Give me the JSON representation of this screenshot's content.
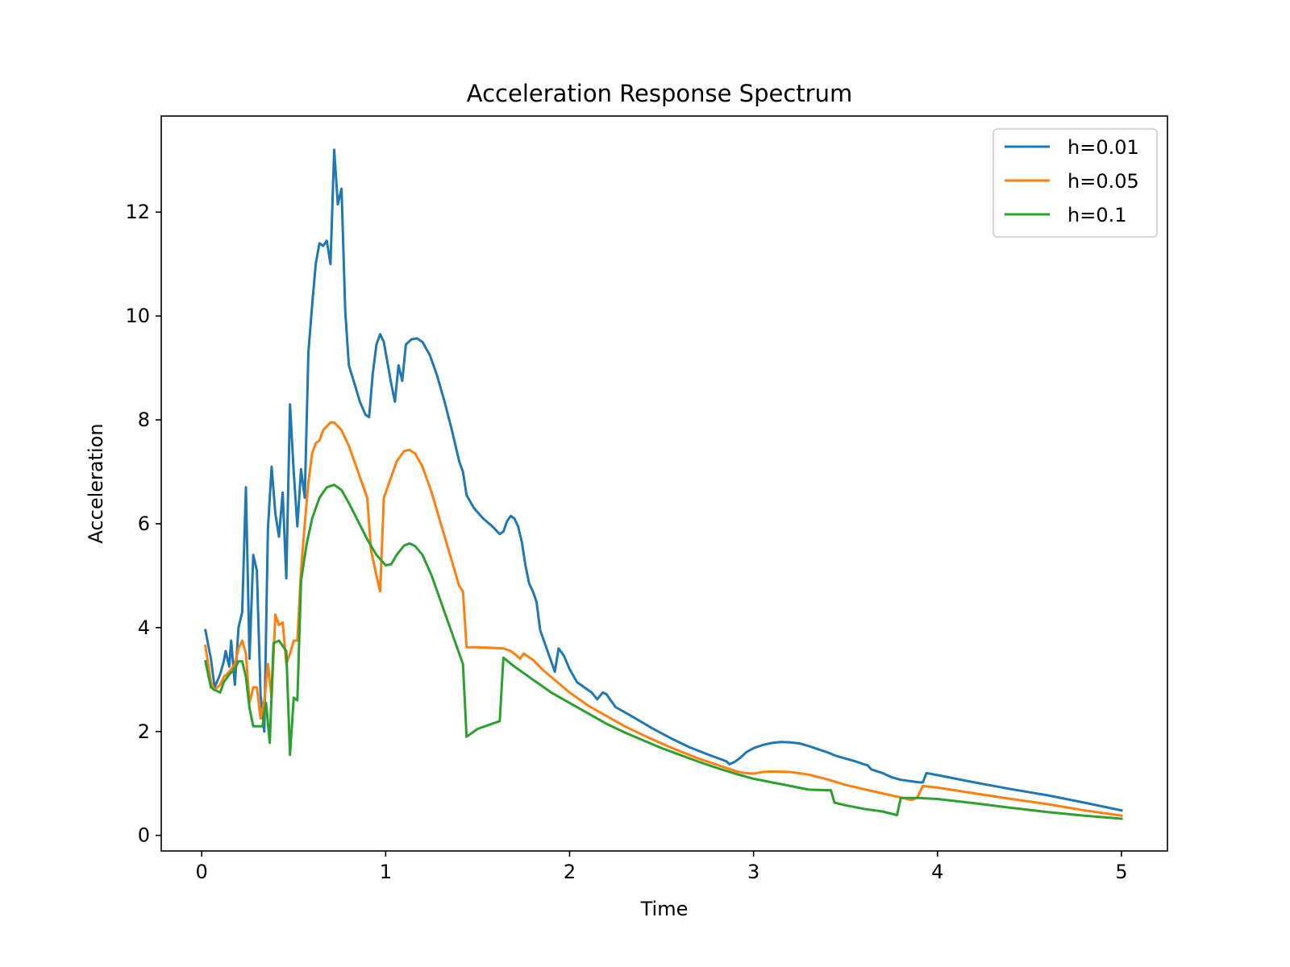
{
  "chart_data": {
    "type": "line",
    "title": "Acceleration Response Spectrum",
    "xlabel": "Time",
    "ylabel": "Acceleration",
    "xlim": [
      -0.22,
      5.25
    ],
    "ylim": [
      -0.3,
      13.85
    ],
    "xticks": [
      0,
      1,
      2,
      3,
      4,
      5
    ],
    "yticks": [
      0,
      2,
      4,
      6,
      8,
      10,
      12
    ],
    "grid": false,
    "legend_position": "upper right",
    "series": [
      {
        "name": "h=0.01",
        "color": "#1f77b4",
        "points": [
          [
            0.02,
            3.95
          ],
          [
            0.05,
            3.4
          ],
          [
            0.07,
            2.85
          ],
          [
            0.1,
            3.1
          ],
          [
            0.12,
            3.35
          ],
          [
            0.13,
            3.55
          ],
          [
            0.15,
            3.25
          ],
          [
            0.16,
            3.75
          ],
          [
            0.18,
            2.9
          ],
          [
            0.2,
            4.0
          ],
          [
            0.22,
            4.3
          ],
          [
            0.24,
            6.7
          ],
          [
            0.26,
            3.4
          ],
          [
            0.28,
            5.4
          ],
          [
            0.3,
            5.1
          ],
          [
            0.32,
            2.7
          ],
          [
            0.34,
            2.0
          ],
          [
            0.36,
            5.9
          ],
          [
            0.38,
            7.1
          ],
          [
            0.4,
            6.2
          ],
          [
            0.42,
            5.75
          ],
          [
            0.44,
            6.6
          ],
          [
            0.46,
            4.95
          ],
          [
            0.48,
            8.3
          ],
          [
            0.5,
            7.0
          ],
          [
            0.52,
            5.95
          ],
          [
            0.54,
            7.05
          ],
          [
            0.56,
            6.5
          ],
          [
            0.58,
            9.3
          ],
          [
            0.6,
            10.2
          ],
          [
            0.62,
            11.0
          ],
          [
            0.64,
            11.4
          ],
          [
            0.66,
            11.35
          ],
          [
            0.68,
            11.45
          ],
          [
            0.7,
            11.0
          ],
          [
            0.72,
            13.2
          ],
          [
            0.74,
            12.15
          ],
          [
            0.76,
            12.45
          ],
          [
            0.78,
            10.1
          ],
          [
            0.8,
            9.05
          ],
          [
            0.83,
            8.7
          ],
          [
            0.86,
            8.35
          ],
          [
            0.89,
            8.1
          ],
          [
            0.91,
            8.05
          ],
          [
            0.93,
            8.9
          ],
          [
            0.95,
            9.45
          ],
          [
            0.97,
            9.65
          ],
          [
            0.99,
            9.5
          ],
          [
            1.01,
            9.1
          ],
          [
            1.03,
            8.7
          ],
          [
            1.05,
            8.35
          ],
          [
            1.07,
            9.05
          ],
          [
            1.09,
            8.75
          ],
          [
            1.11,
            9.45
          ],
          [
            1.14,
            9.55
          ],
          [
            1.17,
            9.57
          ],
          [
            1.2,
            9.5
          ],
          [
            1.24,
            9.25
          ],
          [
            1.28,
            8.85
          ],
          [
            1.32,
            8.35
          ],
          [
            1.36,
            7.8
          ],
          [
            1.4,
            7.2
          ],
          [
            1.42,
            7.0
          ],
          [
            1.44,
            6.55
          ],
          [
            1.48,
            6.3
          ],
          [
            1.53,
            6.1
          ],
          [
            1.58,
            5.95
          ],
          [
            1.62,
            5.8
          ],
          [
            1.64,
            5.85
          ],
          [
            1.66,
            6.05
          ],
          [
            1.68,
            6.15
          ],
          [
            1.7,
            6.1
          ],
          [
            1.72,
            5.95
          ],
          [
            1.74,
            5.65
          ],
          [
            1.76,
            5.2
          ],
          [
            1.78,
            4.85
          ],
          [
            1.8,
            4.7
          ],
          [
            1.82,
            4.5
          ],
          [
            1.84,
            3.95
          ],
          [
            1.88,
            3.55
          ],
          [
            1.92,
            3.15
          ],
          [
            1.94,
            3.6
          ],
          [
            1.97,
            3.45
          ],
          [
            2.0,
            3.2
          ],
          [
            2.04,
            2.95
          ],
          [
            2.08,
            2.85
          ],
          [
            2.12,
            2.75
          ],
          [
            2.15,
            2.62
          ],
          [
            2.18,
            2.75
          ],
          [
            2.2,
            2.72
          ],
          [
            2.25,
            2.47
          ],
          [
            2.35,
            2.27
          ],
          [
            2.45,
            2.06
          ],
          [
            2.55,
            1.87
          ],
          [
            2.65,
            1.7
          ],
          [
            2.75,
            1.56
          ],
          [
            2.85,
            1.43
          ],
          [
            2.87,
            1.37
          ],
          [
            2.9,
            1.42
          ],
          [
            2.93,
            1.5
          ],
          [
            2.96,
            1.6
          ],
          [
            3.0,
            1.68
          ],
          [
            3.05,
            1.74
          ],
          [
            3.1,
            1.78
          ],
          [
            3.15,
            1.8
          ],
          [
            3.2,
            1.79
          ],
          [
            3.25,
            1.77
          ],
          [
            3.3,
            1.72
          ],
          [
            3.35,
            1.66
          ],
          [
            3.4,
            1.6
          ],
          [
            3.45,
            1.53
          ],
          [
            3.5,
            1.48
          ],
          [
            3.55,
            1.43
          ],
          [
            3.6,
            1.37
          ],
          [
            3.62,
            1.35
          ],
          [
            3.64,
            1.27
          ],
          [
            3.7,
            1.2
          ],
          [
            3.75,
            1.12
          ],
          [
            3.8,
            1.07
          ],
          [
            3.86,
            1.04
          ],
          [
            3.9,
            1.02
          ],
          [
            3.92,
            1.02
          ],
          [
            3.94,
            1.2
          ],
          [
            4.0,
            1.16
          ],
          [
            4.2,
            1.02
          ],
          [
            4.4,
            0.89
          ],
          [
            4.6,
            0.77
          ],
          [
            4.8,
            0.63
          ],
          [
            5.0,
            0.48
          ]
        ]
      },
      {
        "name": "h=0.05",
        "color": "#ff7f0e",
        "points": [
          [
            0.02,
            3.65
          ],
          [
            0.05,
            2.95
          ],
          [
            0.07,
            2.8
          ],
          [
            0.1,
            2.9
          ],
          [
            0.12,
            3.05
          ],
          [
            0.15,
            3.15
          ],
          [
            0.18,
            3.3
          ],
          [
            0.2,
            3.6
          ],
          [
            0.22,
            3.75
          ],
          [
            0.24,
            3.5
          ],
          [
            0.26,
            2.55
          ],
          [
            0.28,
            2.85
          ],
          [
            0.3,
            2.85
          ],
          [
            0.32,
            2.25
          ],
          [
            0.34,
            2.6
          ],
          [
            0.36,
            3.3
          ],
          [
            0.38,
            2.65
          ],
          [
            0.4,
            4.25
          ],
          [
            0.42,
            4.05
          ],
          [
            0.44,
            4.1
          ],
          [
            0.46,
            3.3
          ],
          [
            0.48,
            3.5
          ],
          [
            0.5,
            3.75
          ],
          [
            0.52,
            3.75
          ],
          [
            0.54,
            5.1
          ],
          [
            0.56,
            6.0
          ],
          [
            0.58,
            6.8
          ],
          [
            0.6,
            7.35
          ],
          [
            0.62,
            7.55
          ],
          [
            0.64,
            7.6
          ],
          [
            0.66,
            7.8
          ],
          [
            0.7,
            7.95
          ],
          [
            0.72,
            7.95
          ],
          [
            0.76,
            7.8
          ],
          [
            0.8,
            7.5
          ],
          [
            0.85,
            7.0
          ],
          [
            0.9,
            6.5
          ],
          [
            0.92,
            5.5
          ],
          [
            0.95,
            5.0
          ],
          [
            0.97,
            4.7
          ],
          [
            0.99,
            6.5
          ],
          [
            1.02,
            6.8
          ],
          [
            1.06,
            7.2
          ],
          [
            1.1,
            7.4
          ],
          [
            1.13,
            7.42
          ],
          [
            1.16,
            7.35
          ],
          [
            1.2,
            7.1
          ],
          [
            1.25,
            6.6
          ],
          [
            1.3,
            6.0
          ],
          [
            1.35,
            5.4
          ],
          [
            1.4,
            4.8
          ],
          [
            1.42,
            4.7
          ],
          [
            1.44,
            3.62
          ],
          [
            1.5,
            3.62
          ],
          [
            1.58,
            3.61
          ],
          [
            1.64,
            3.6
          ],
          [
            1.68,
            3.55
          ],
          [
            1.71,
            3.47
          ],
          [
            1.73,
            3.4
          ],
          [
            1.75,
            3.5
          ],
          [
            1.8,
            3.38
          ],
          [
            1.85,
            3.2
          ],
          [
            1.9,
            3.05
          ],
          [
            2.0,
            2.75
          ],
          [
            2.1,
            2.5
          ],
          [
            2.2,
            2.3
          ],
          [
            2.3,
            2.1
          ],
          [
            2.4,
            1.93
          ],
          [
            2.5,
            1.77
          ],
          [
            2.6,
            1.62
          ],
          [
            2.7,
            1.48
          ],
          [
            2.8,
            1.36
          ],
          [
            2.9,
            1.24
          ],
          [
            2.95,
            1.2
          ],
          [
            3.0,
            1.19
          ],
          [
            3.05,
            1.22
          ],
          [
            3.1,
            1.23
          ],
          [
            3.2,
            1.22
          ],
          [
            3.3,
            1.17
          ],
          [
            3.4,
            1.08
          ],
          [
            3.5,
            0.97
          ],
          [
            3.6,
            0.89
          ],
          [
            3.7,
            0.81
          ],
          [
            3.8,
            0.73
          ],
          [
            3.86,
            0.68
          ],
          [
            3.89,
            0.73
          ],
          [
            3.92,
            0.95
          ],
          [
            4.0,
            0.92
          ],
          [
            4.2,
            0.81
          ],
          [
            4.4,
            0.7
          ],
          [
            4.6,
            0.6
          ],
          [
            4.8,
            0.48
          ],
          [
            5.0,
            0.38
          ]
        ]
      },
      {
        "name": "h=0.1",
        "color": "#2ca02c",
        "points": [
          [
            0.02,
            3.35
          ],
          [
            0.05,
            2.85
          ],
          [
            0.07,
            2.8
          ],
          [
            0.1,
            2.75
          ],
          [
            0.12,
            2.95
          ],
          [
            0.15,
            3.1
          ],
          [
            0.18,
            3.2
          ],
          [
            0.2,
            3.35
          ],
          [
            0.22,
            3.35
          ],
          [
            0.24,
            3.05
          ],
          [
            0.26,
            2.45
          ],
          [
            0.28,
            2.1
          ],
          [
            0.3,
            2.1
          ],
          [
            0.33,
            2.1
          ],
          [
            0.35,
            2.55
          ],
          [
            0.37,
            1.78
          ],
          [
            0.39,
            3.7
          ],
          [
            0.42,
            3.75
          ],
          [
            0.46,
            3.55
          ],
          [
            0.48,
            1.55
          ],
          [
            0.5,
            2.65
          ],
          [
            0.52,
            2.6
          ],
          [
            0.54,
            4.9
          ],
          [
            0.57,
            5.6
          ],
          [
            0.6,
            6.1
          ],
          [
            0.64,
            6.5
          ],
          [
            0.68,
            6.7
          ],
          [
            0.72,
            6.75
          ],
          [
            0.76,
            6.65
          ],
          [
            0.8,
            6.4
          ],
          [
            0.85,
            6.05
          ],
          [
            0.9,
            5.7
          ],
          [
            0.95,
            5.4
          ],
          [
            1.0,
            5.2
          ],
          [
            1.03,
            5.22
          ],
          [
            1.06,
            5.4
          ],
          [
            1.1,
            5.58
          ],
          [
            1.13,
            5.62
          ],
          [
            1.16,
            5.57
          ],
          [
            1.2,
            5.4
          ],
          [
            1.25,
            5.0
          ],
          [
            1.3,
            4.5
          ],
          [
            1.35,
            4.0
          ],
          [
            1.4,
            3.5
          ],
          [
            1.42,
            3.3
          ],
          [
            1.44,
            1.9
          ],
          [
            1.5,
            2.05
          ],
          [
            1.58,
            2.15
          ],
          [
            1.62,
            2.2
          ],
          [
            1.64,
            3.42
          ],
          [
            1.7,
            3.25
          ],
          [
            1.8,
            3.0
          ],
          [
            1.9,
            2.75
          ],
          [
            2.0,
            2.55
          ],
          [
            2.1,
            2.35
          ],
          [
            2.2,
            2.15
          ],
          [
            2.3,
            1.98
          ],
          [
            2.4,
            1.83
          ],
          [
            2.5,
            1.68
          ],
          [
            2.6,
            1.55
          ],
          [
            2.7,
            1.42
          ],
          [
            2.8,
            1.3
          ],
          [
            2.9,
            1.19
          ],
          [
            3.0,
            1.09
          ],
          [
            3.1,
            1.02
          ],
          [
            3.2,
            0.95
          ],
          [
            3.3,
            0.88
          ],
          [
            3.4,
            0.87
          ],
          [
            3.42,
            0.87
          ],
          [
            3.44,
            0.63
          ],
          [
            3.5,
            0.58
          ],
          [
            3.6,
            0.51
          ],
          [
            3.7,
            0.46
          ],
          [
            3.78,
            0.39
          ],
          [
            3.8,
            0.72
          ],
          [
            3.9,
            0.72
          ],
          [
            4.0,
            0.7
          ],
          [
            4.2,
            0.62
          ],
          [
            4.4,
            0.53
          ],
          [
            4.6,
            0.45
          ],
          [
            4.8,
            0.38
          ],
          [
            5.0,
            0.32
          ]
        ]
      }
    ]
  }
}
